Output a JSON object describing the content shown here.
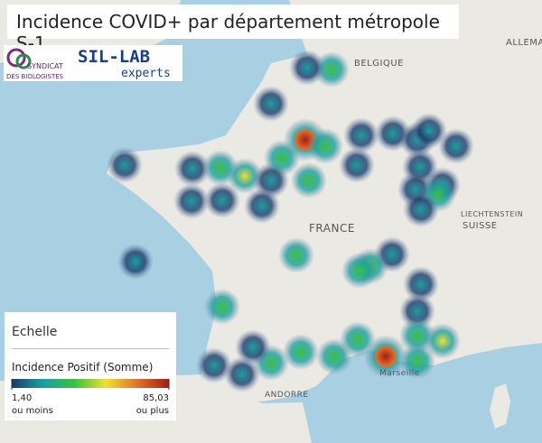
{
  "header": {
    "title": "Incidence COVID+ par département métropole S-1"
  },
  "logos": [
    "SYNDICAT",
    "DES BIOLOGISTES",
    "SIL-LAB",
    "experts"
  ],
  "map": {
    "labels": [
      "BELGIQUE",
      "ALLEMA",
      "FRANCE",
      "SUISSE",
      "LIECHTENSTEIN",
      "ANDORRE",
      "Marseille"
    ]
  },
  "legend": {
    "title": "Echelle",
    "measure": "Incidence Positif (Somme)",
    "min": {
      "value": 1.4,
      "label": "1,40"
    },
    "min_note": "ou moins",
    "max": {
      "value": 85.03,
      "label": "85,03"
    },
    "max_note": "ou plus",
    "colors": [
      "#1a3a6b",
      "#1aa0a0",
      "#3cc040",
      "#f0e030",
      "#e07030",
      "#a02010"
    ]
  }
}
